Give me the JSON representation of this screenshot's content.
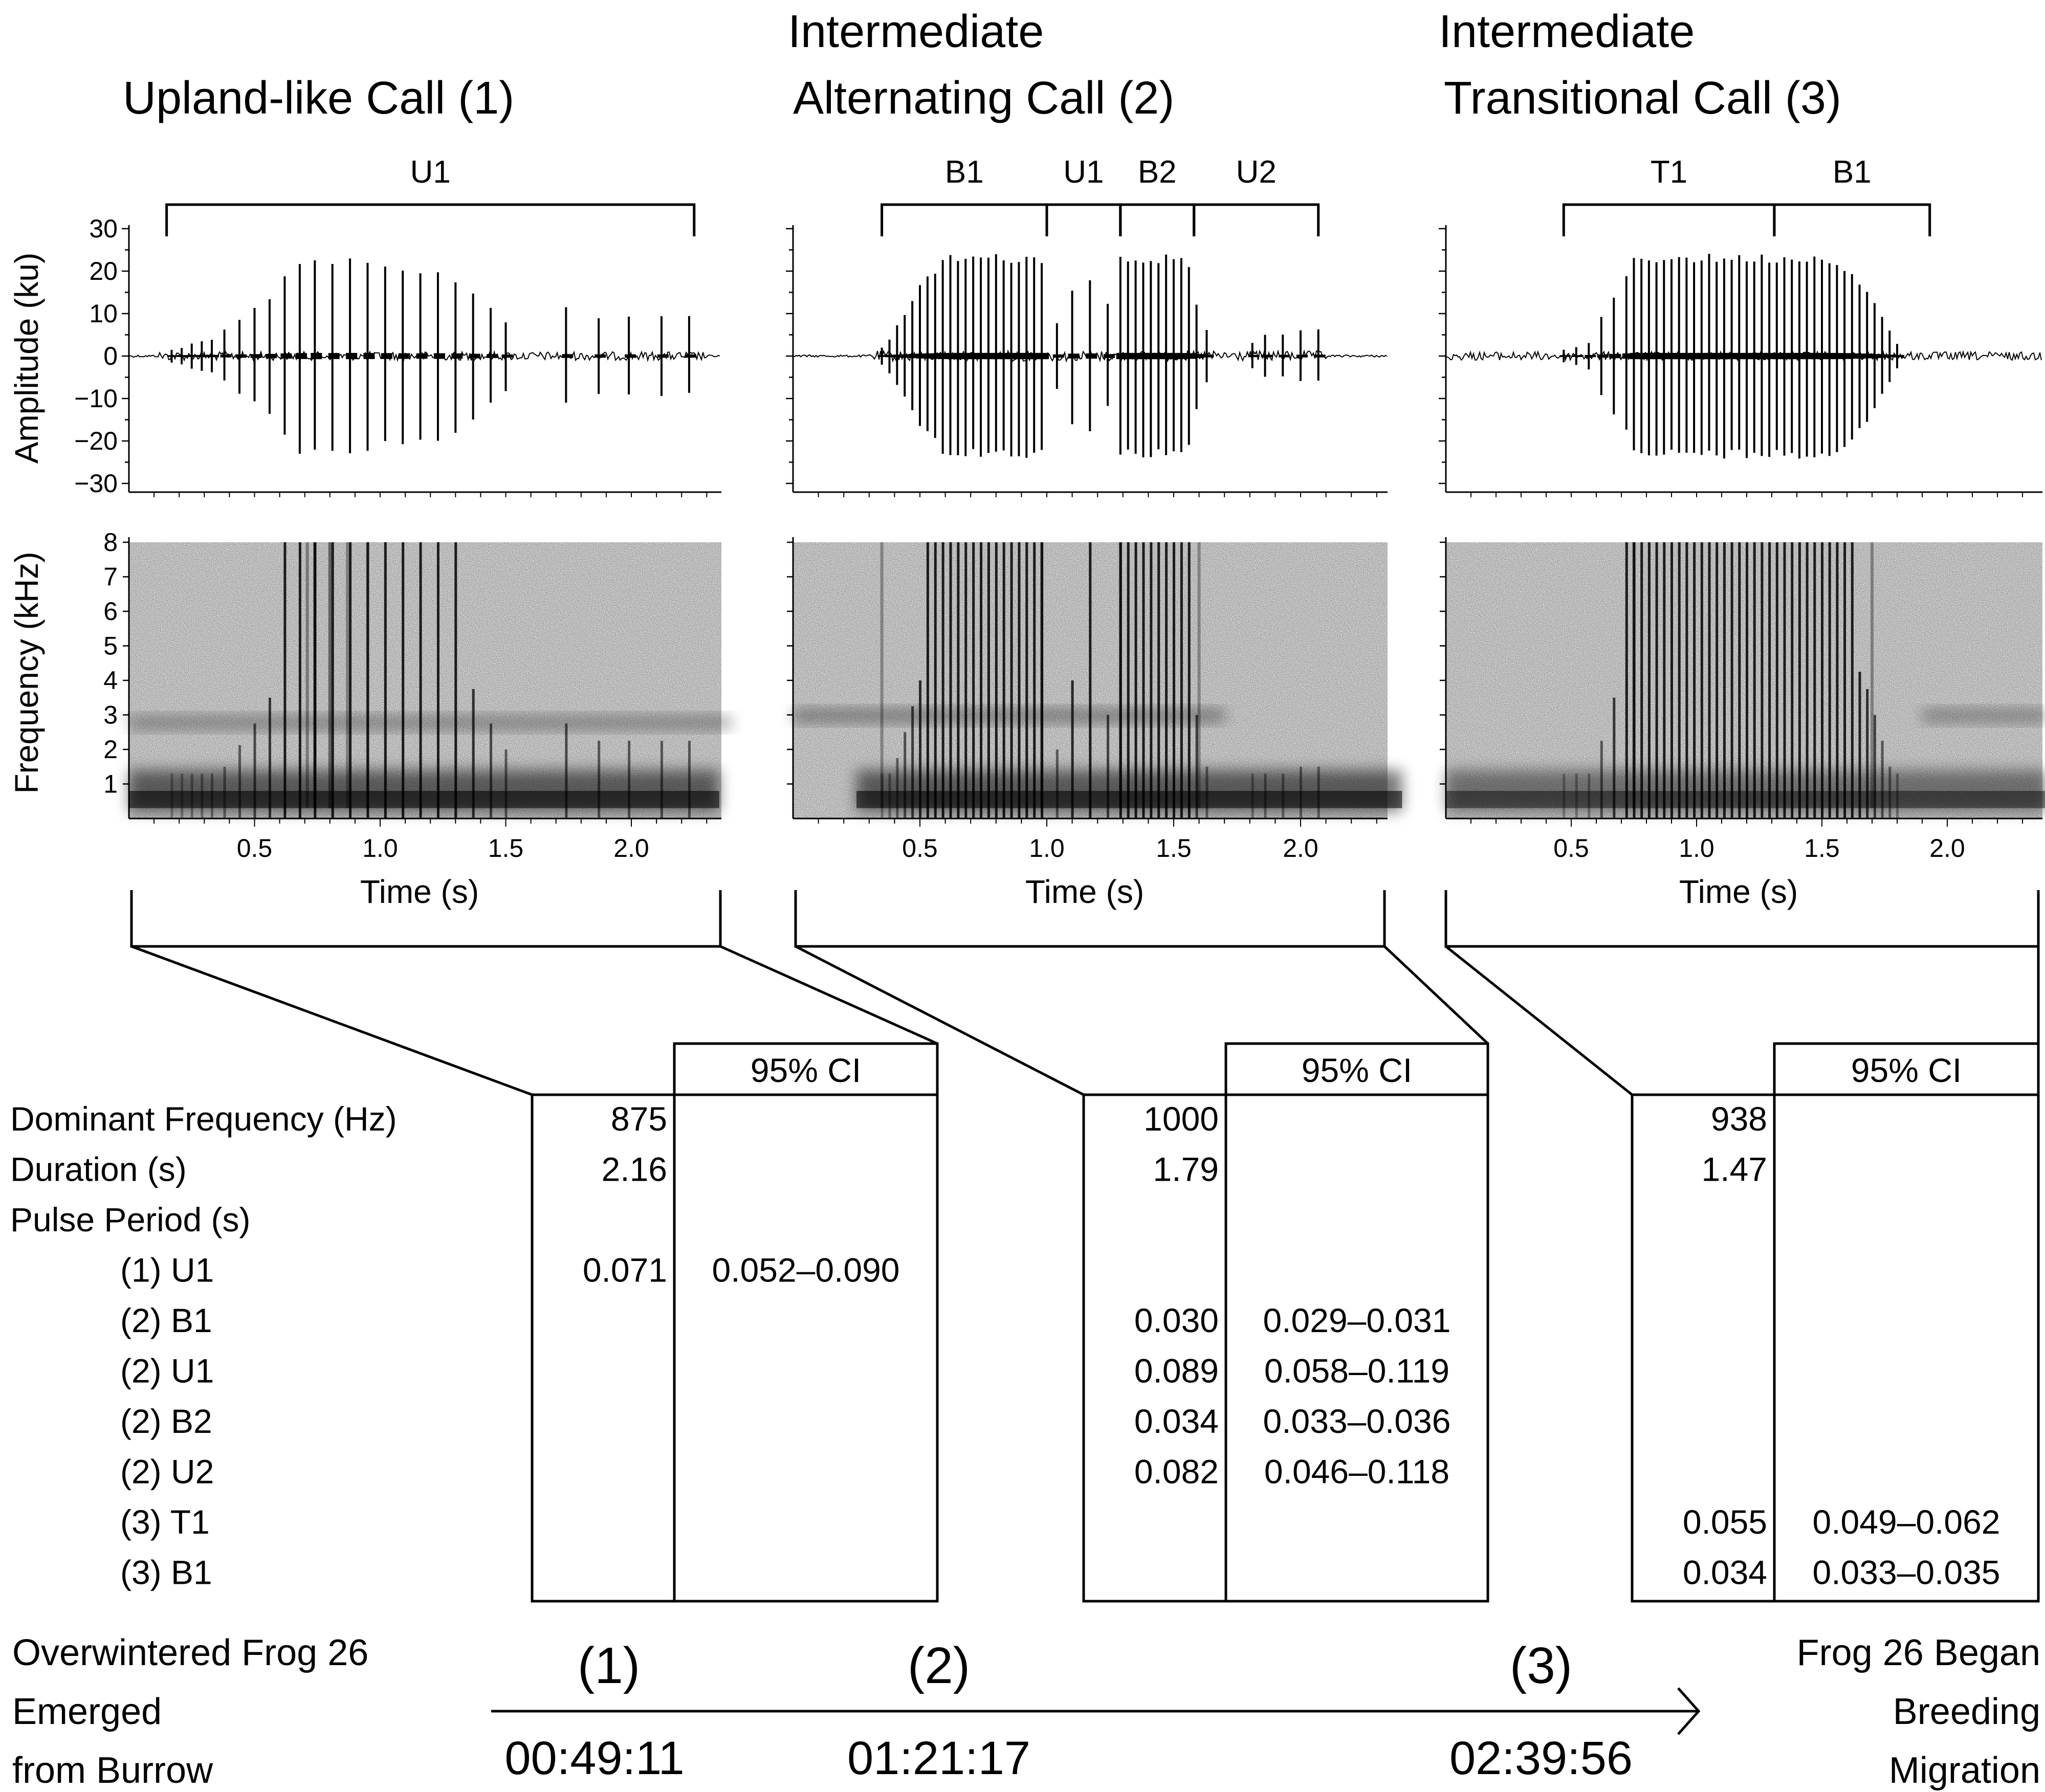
{
  "panels": [
    {
      "title_lines": [
        "Upland-like Call (1)"
      ],
      "segments": [
        {
          "label": "U1",
          "start": 0.15,
          "end": 2.25
        }
      ],
      "wave": {
        "pulses": [
          [
            0.17,
            1.5
          ],
          [
            0.21,
            2
          ],
          [
            0.25,
            3
          ],
          [
            0.29,
            3.5
          ],
          [
            0.33,
            4
          ],
          [
            0.38,
            6
          ],
          [
            0.44,
            8.5
          ],
          [
            0.5,
            11
          ],
          [
            0.56,
            14
          ],
          [
            0.62,
            18
          ],
          [
            0.68,
            22
          ],
          [
            0.74,
            23
          ],
          [
            0.81,
            22
          ],
          [
            0.88,
            23
          ],
          [
            0.95,
            22
          ],
          [
            1.02,
            21
          ],
          [
            1.09,
            20
          ],
          [
            1.16,
            19
          ],
          [
            1.23,
            20
          ],
          [
            1.3,
            18
          ],
          [
            1.37,
            15
          ],
          [
            1.44,
            11
          ],
          [
            1.5,
            8
          ],
          [
            1.74,
            11
          ],
          [
            1.87,
            9
          ],
          [
            1.99,
            9
          ],
          [
            2.12,
            9
          ],
          [
            2.23,
            9
          ]
        ],
        "noise": 1.0,
        "noise_start": 0.12,
        "noise_end": 2.3
      },
      "spec": {
        "band_low": [
          0.0,
          2.35
        ],
        "band_low_dark": 0.95,
        "band_mid": [
          0.0,
          2.4
        ],
        "band_mid_freq": 2.8,
        "band_mid_dark": 0.35,
        "tall": [
          [
            0.71,
            0.6
          ],
          [
            0.74,
            0.9
          ],
          [
            0.8,
            0.8
          ],
          [
            0.87,
            0.55
          ],
          [
            0.95,
            0.4
          ]
        ]
      }
    },
    {
      "title_lines": [
        "Intermediate",
        "Alternating Call (2)"
      ],
      "segments": [
        {
          "label": "B1",
          "start": 0.35,
          "end": 1.0
        },
        {
          "label": "U1",
          "start": 1.0,
          "end": 1.29
        },
        {
          "label": "B2",
          "start": 1.29,
          "end": 1.58
        },
        {
          "label": "U2",
          "start": 1.58,
          "end": 2.07
        }
      ],
      "wave": {
        "pulses": [
          [
            0.35,
            2
          ],
          [
            0.38,
            4
          ],
          [
            0.41,
            7
          ],
          [
            0.44,
            10
          ],
          [
            0.47,
            13
          ],
          [
            0.5,
            16
          ],
          [
            0.53,
            18
          ],
          [
            0.56,
            20
          ],
          [
            0.59,
            22
          ],
          [
            0.62,
            23
          ],
          [
            0.65,
            23
          ],
          [
            0.68,
            23
          ],
          [
            0.71,
            23
          ],
          [
            0.74,
            23
          ],
          [
            0.77,
            23
          ],
          [
            0.8,
            23
          ],
          [
            0.83,
            23
          ],
          [
            0.86,
            23
          ],
          [
            0.89,
            23
          ],
          [
            0.92,
            23
          ],
          [
            0.95,
            23
          ],
          [
            0.98,
            23
          ],
          [
            1.04,
            8
          ],
          [
            1.1,
            16
          ],
          [
            1.17,
            18
          ],
          [
            1.24,
            12
          ],
          [
            1.29,
            23
          ],
          [
            1.32,
            23
          ],
          [
            1.35,
            23
          ],
          [
            1.38,
            23
          ],
          [
            1.41,
            23
          ],
          [
            1.44,
            23
          ],
          [
            1.47,
            23
          ],
          [
            1.5,
            23
          ],
          [
            1.53,
            22
          ],
          [
            1.56,
            20
          ],
          [
            1.59,
            12
          ],
          [
            1.63,
            6
          ],
          [
            1.81,
            3
          ],
          [
            1.86,
            5
          ],
          [
            1.93,
            5
          ],
          [
            2.0,
            6
          ],
          [
            2.07,
            6
          ]
        ],
        "noise": 1.2,
        "noise_start": 0.3,
        "noise_end": 2.1
      },
      "spec": {
        "band_low": [
          0.25,
          2.4
        ],
        "band_low_dark": 0.95,
        "band_mid": [
          0.0,
          1.7
        ],
        "band_mid_freq": 3.0,
        "band_mid_dark": 0.4,
        "tall": [
          [
            0.35,
            0.5
          ],
          [
            0.98,
            0.6
          ],
          [
            1.29,
            0.6
          ],
          [
            1.6,
            0.5
          ]
        ]
      }
    },
    {
      "title_lines": [
        "Intermediate",
        "Transitional Call (3)"
      ],
      "segments": [
        {
          "label": "T1",
          "start": 0.47,
          "end": 1.31
        },
        {
          "label": "B1",
          "start": 1.31,
          "end": 1.93
        }
      ],
      "wave": {
        "pulses": [
          [
            0.47,
            1.5
          ],
          [
            0.52,
            2
          ],
          [
            0.57,
            3
          ],
          [
            0.62,
            9
          ],
          [
            0.67,
            14
          ],
          [
            0.72,
            18
          ],
          [
            0.75,
            23
          ],
          [
            0.78,
            23
          ],
          [
            0.81,
            23
          ],
          [
            0.84,
            23
          ],
          [
            0.87,
            23
          ],
          [
            0.9,
            23
          ],
          [
            0.93,
            23
          ],
          [
            0.96,
            23
          ],
          [
            0.99,
            23
          ],
          [
            1.02,
            23
          ],
          [
            1.05,
            23
          ],
          [
            1.08,
            23
          ],
          [
            1.11,
            23
          ],
          [
            1.14,
            23
          ],
          [
            1.17,
            23
          ],
          [
            1.2,
            23
          ],
          [
            1.23,
            23
          ],
          [
            1.26,
            23
          ],
          [
            1.29,
            23
          ],
          [
            1.32,
            23
          ],
          [
            1.35,
            23
          ],
          [
            1.38,
            23
          ],
          [
            1.41,
            23
          ],
          [
            1.44,
            23
          ],
          [
            1.47,
            23
          ],
          [
            1.5,
            23
          ],
          [
            1.53,
            23
          ],
          [
            1.56,
            22
          ],
          [
            1.59,
            21
          ],
          [
            1.62,
            19
          ],
          [
            1.65,
            17
          ],
          [
            1.68,
            15
          ],
          [
            1.71,
            12
          ],
          [
            1.74,
            9
          ],
          [
            1.77,
            6
          ],
          [
            1.8,
            3
          ]
        ],
        "noise": 1.0,
        "noise_start": 0.0,
        "noise_end": 2.4
      },
      "spec": {
        "band_low": [
          0.0,
          2.4
        ],
        "band_low_dark": 0.75,
        "band_mid": [
          1.9,
          2.4
        ],
        "band_mid_freq": 3.0,
        "band_mid_dark": 0.35,
        "tall": [
          [
            0.75,
            0.7
          ],
          [
            1.7,
            0.55
          ]
        ]
      }
    }
  ],
  "axes": {
    "amplitude_label": "Amplitude (ku)",
    "frequency_label": "Frequency (kHz)",
    "time_label": "Time (s)",
    "amp_ticks": [
      "30",
      "20",
      "10",
      "0",
      "−10",
      "−20",
      "−30"
    ],
    "freq_ticks": [
      "8",
      "7",
      "6",
      "5",
      "4",
      "3",
      "2",
      "1"
    ],
    "time_ticks": [
      "0.5",
      "1.0",
      "1.5",
      "2.0"
    ]
  },
  "table": {
    "ci_header": "95% CI",
    "row_labels": [
      "Dominant Frequency (Hz)",
      "Duration (s)",
      "Pulse Period (s)",
      "(1) U1",
      "(2) B1",
      "(2) U1",
      "(2) B2",
      "(2) U2",
      "(3) T1",
      "(3) B1"
    ],
    "columns": [
      {
        "values": [
          "875",
          "2.16",
          "",
          "0.071",
          "",
          "",
          "",
          "",
          "",
          ""
        ],
        "ci": [
          "",
          "",
          "",
          "0.052–0.090",
          "",
          "",
          "",
          "",
          "",
          ""
        ]
      },
      {
        "values": [
          "1000",
          "1.79",
          "",
          "",
          "0.030",
          "0.089",
          "0.034",
          "0.082",
          "",
          ""
        ],
        "ci": [
          "",
          "",
          "",
          "",
          "0.029–0.031",
          "0.058–0.119",
          "0.033–0.036",
          "0.046–0.118",
          "",
          ""
        ]
      },
      {
        "values": [
          "938",
          "1.47",
          "",
          "",
          "",
          "",
          "",
          "",
          "0.055",
          "0.034"
        ],
        "ci": [
          "",
          "",
          "",
          "",
          "",
          "",
          "",
          "",
          "0.049–0.062",
          "0.033–0.035"
        ]
      }
    ]
  },
  "timeline": {
    "start_lines": [
      "Overwintered Frog 26",
      "Emerged",
      "from Burrow"
    ],
    "end_lines": [
      "Frog 26 Began",
      "Breeding",
      "Migration"
    ],
    "events": [
      {
        "number": "(1)",
        "time": "00:49:11"
      },
      {
        "number": "(2)",
        "time": "01:21:17"
      },
      {
        "number": "(3)",
        "time": "02:39:56"
      }
    ]
  }
}
